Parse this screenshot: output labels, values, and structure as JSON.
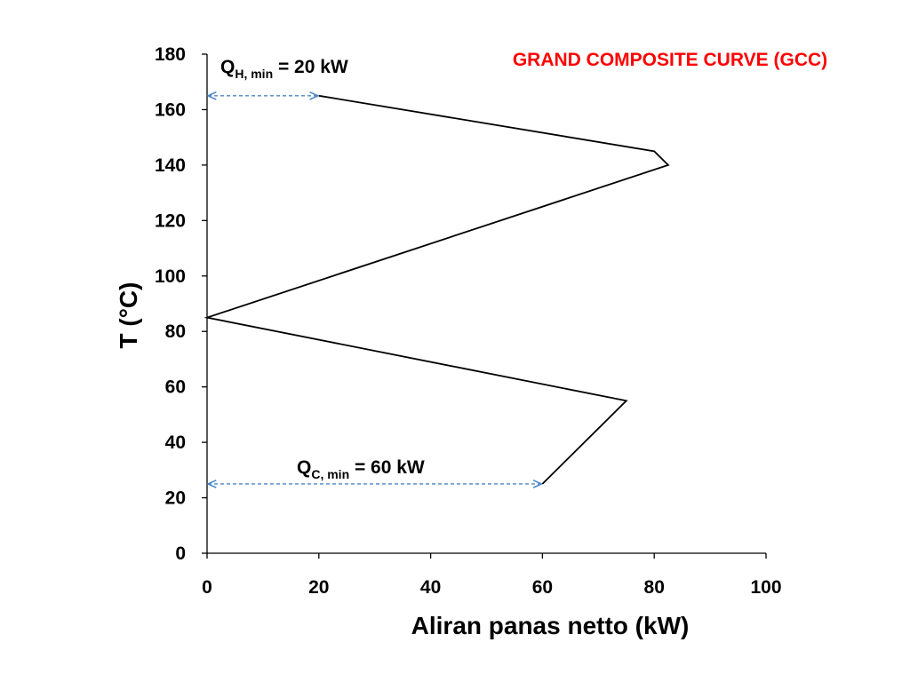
{
  "chart_data": {
    "type": "line",
    "title": "GRAND COMPOSITE CURVE (GCC)",
    "title_color": "#ff0000",
    "xlabel": "Aliran panas netto (kW)",
    "ylabel": "T (°C)",
    "xlim": [
      0,
      100
    ],
    "ylim": [
      0,
      180
    ],
    "xticks": [
      0,
      20,
      40,
      60,
      80,
      100
    ],
    "yticks": [
      0,
      20,
      40,
      60,
      80,
      100,
      120,
      140,
      160,
      180
    ],
    "grid": false,
    "legend": "none",
    "series": [
      {
        "color": "#000000",
        "points": [
          {
            "x": 20,
            "y": 165
          },
          {
            "x": 80,
            "y": 145
          },
          {
            "x": 82.5,
            "y": 140
          },
          {
            "x": 0,
            "y": 85
          },
          {
            "x": 75,
            "y": 55
          },
          {
            "x": 60,
            "y": 25
          }
        ]
      }
    ],
    "annotations": [
      {
        "id": "qh",
        "main": "Q",
        "sub": "H, min",
        "rest": " = 20 kW",
        "arrow": {
          "x1": 0,
          "x2": 20,
          "y": 165
        },
        "arrow_color": "#4a86c5"
      },
      {
        "id": "qc",
        "main": "Q",
        "sub": "C, min",
        "rest": " = 60 kW",
        "arrow": {
          "x1": 0,
          "x2": 60,
          "y": 25
        },
        "arrow_color": "#4a86c5"
      }
    ]
  }
}
